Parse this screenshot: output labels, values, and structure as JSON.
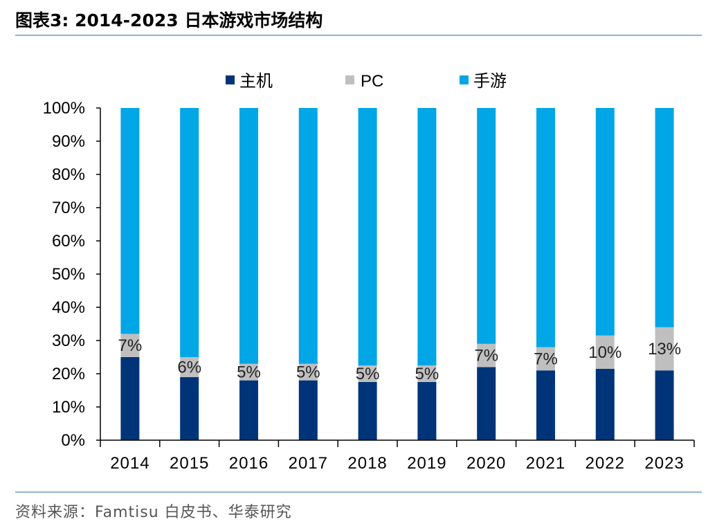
{
  "title": "图表3:   2014-2023 日本游戏市场结构",
  "source": "资料来源：Famtisu 白皮书、华泰研究",
  "colors": {
    "console": "#003478",
    "pc": "#bfbfbf",
    "mobile": "#00a6e6",
    "rule": "#8fb4d8"
  },
  "chart_data": {
    "type": "bar",
    "stacked": true,
    "title": "2014-2023 日本游戏市场结构",
    "categories": [
      "2014",
      "2015",
      "2016",
      "2017",
      "2018",
      "2019",
      "2020",
      "2021",
      "2022",
      "2023"
    ],
    "series": [
      {
        "name": "主机",
        "values": [
          25,
          19,
          18,
          18,
          17.5,
          17.5,
          22,
          21,
          21.5,
          21
        ]
      },
      {
        "name": "PC",
        "values": [
          7,
          6,
          5,
          5,
          5,
          5,
          7,
          7,
          10,
          13
        ]
      },
      {
        "name": "手游",
        "values": [
          68,
          75,
          77,
          77,
          77.5,
          77.5,
          71,
          72,
          68.5,
          66
        ]
      }
    ],
    "data_labels": [
      "7%",
      "6%",
      "5%",
      "5%",
      "5%",
      "5%",
      "7%",
      "7%",
      "10%",
      "13%"
    ],
    "y_tick_labels": [
      "0%",
      "10%",
      "20%",
      "30%",
      "40%",
      "50%",
      "60%",
      "70%",
      "80%",
      "90%",
      "100%"
    ],
    "ylim": [
      0,
      100
    ],
    "xlabel": "",
    "ylabel": "",
    "legend": {
      "position": "top",
      "entries": [
        "主机",
        "PC",
        "手游"
      ]
    },
    "grid": false
  }
}
